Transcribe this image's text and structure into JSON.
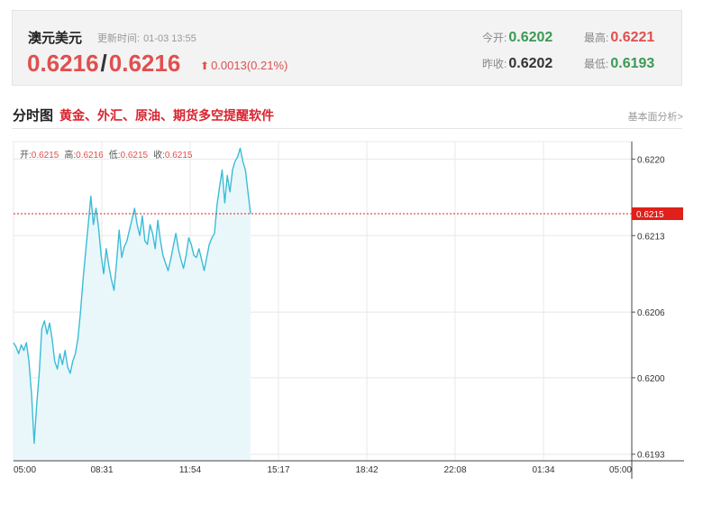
{
  "quote": {
    "name": "澳元美元",
    "time_label": "更新时间:",
    "time_value": "01-03 13:55",
    "bid": "0.6216",
    "slash": "/",
    "ask": "0.6216",
    "arrow": "⬆",
    "change": "0.0013(0.21%)",
    "open_label": "今开:",
    "open_value": "0.6202",
    "high_label": "最高:",
    "high_value": "0.6221",
    "prev_close_label": "昨收:",
    "prev_close_value": "0.6202",
    "low_label": "最低:",
    "low_value": "0.6193"
  },
  "section": {
    "title": "分时图",
    "promo": "黄金、外汇、原油、期货多空提醒软件",
    "link": "基本面分析>"
  },
  "ohlc_bar": {
    "open_label": "开:",
    "open_value": "0.6215",
    "high_label": "高:",
    "high_value": "0.6216",
    "low_label": "低:",
    "low_value": "0.6215",
    "close_label": "收:",
    "close_value": "0.6215"
  },
  "chart_data": {
    "type": "area",
    "x_tick_labels": [
      "05:00",
      "08:31",
      "11:54",
      "15:17",
      "18:42",
      "22:08",
      "01:34",
      "05:00"
    ],
    "y_tick_labels": [
      "0.6220",
      "0.6213",
      "0.6206",
      "0.6200",
      "0.6193"
    ],
    "y_ticks": [
      0.622,
      0.6213,
      0.6206,
      0.62,
      0.6193
    ],
    "ylim": [
      0.61924,
      0.62216
    ],
    "x_range_hours": [
      0,
      24
    ],
    "current_price": 0.6215,
    "current_price_label": "0.6215",
    "grid": true,
    "colors": {
      "line": "#3cbcd6",
      "fill": "#e9f7fb",
      "marker": "#e0201a",
      "grid": "#e8e8e8"
    },
    "series": [
      {
        "x": [
          0.0,
          0.1,
          0.2,
          0.3,
          0.4,
          0.5,
          0.6,
          0.7,
          0.8,
          0.9,
          1.0,
          1.1,
          1.2,
          1.3,
          1.4,
          1.5,
          1.6,
          1.7,
          1.8,
          1.9,
          2.0,
          2.1,
          2.2,
          2.3,
          2.4,
          2.5,
          2.6,
          2.7,
          2.8,
          2.9,
          3.0,
          3.1,
          3.2,
          3.3,
          3.4,
          3.5,
          3.6,
          3.7,
          3.8,
          3.9,
          4.0,
          4.1,
          4.2,
          4.3,
          4.4,
          4.5,
          4.6,
          4.7,
          4.8,
          4.9,
          5.0,
          5.1,
          5.2,
          5.3,
          5.4,
          5.5,
          5.6,
          5.7,
          5.8,
          5.9,
          6.0,
          6.1,
          6.2,
          6.3,
          6.4,
          6.5,
          6.6,
          6.7,
          6.8,
          6.9,
          7.0,
          7.1,
          7.2,
          7.3,
          7.4,
          7.5,
          7.6,
          7.7,
          7.8,
          7.9,
          8.0,
          8.1,
          8.2,
          8.3,
          8.4,
          8.5,
          8.6,
          8.7,
          8.8,
          8.9,
          9.0,
          9.1,
          9.2
        ],
        "y": [
          0.62032,
          0.62028,
          0.62022,
          0.6203,
          0.62025,
          0.62032,
          0.62015,
          0.61985,
          0.6194,
          0.61975,
          0.62005,
          0.62045,
          0.62052,
          0.6204,
          0.6205,
          0.62035,
          0.62015,
          0.62008,
          0.62022,
          0.62012,
          0.62025,
          0.6201,
          0.62004,
          0.62015,
          0.62022,
          0.62036,
          0.6206,
          0.6209,
          0.62115,
          0.6214,
          0.62166,
          0.6214,
          0.62155,
          0.62138,
          0.62112,
          0.62095,
          0.62118,
          0.62102,
          0.6209,
          0.6208,
          0.62105,
          0.62135,
          0.6211,
          0.6212,
          0.62125,
          0.62135,
          0.62145,
          0.62155,
          0.6214,
          0.6213,
          0.62148,
          0.62125,
          0.62122,
          0.6214,
          0.62132,
          0.62118,
          0.62144,
          0.62126,
          0.62112,
          0.62105,
          0.62098,
          0.62108,
          0.6212,
          0.62132,
          0.62118,
          0.62108,
          0.621,
          0.62112,
          0.62128,
          0.62122,
          0.62112,
          0.6211,
          0.62118,
          0.62108,
          0.62098,
          0.6211,
          0.62122,
          0.62128,
          0.62132,
          0.62158,
          0.62175,
          0.6219,
          0.6216,
          0.62185,
          0.6217,
          0.6219,
          0.62198,
          0.62202,
          0.6221,
          0.62198,
          0.6219,
          0.6217,
          0.6215
        ]
      }
    ]
  }
}
